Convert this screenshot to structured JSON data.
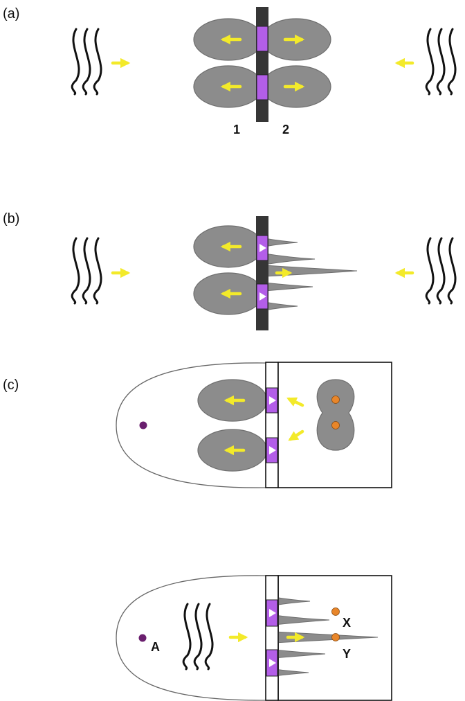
{
  "panels": [
    {
      "id": "a",
      "label": "(a)"
    },
    {
      "id": "b",
      "label": "(b)"
    },
    {
      "id": "c",
      "label": "(c)"
    }
  ],
  "side_labels": {
    "left": "1",
    "right": "2"
  },
  "cell_labels": {
    "a": "A",
    "x": "X",
    "y": "Y"
  },
  "colors": {
    "cell_fill": "#8c8c8c",
    "band_fill": "#363636",
    "junction_fill": "#b35ee8",
    "arrow": "#f3ea2a",
    "wave": "#111111",
    "nucleus_purple": "#6a1f6e",
    "nucleus_orange": "#e8862a"
  },
  "icons": [
    "wave-lines",
    "yellow-arrow",
    "white-triangle"
  ]
}
